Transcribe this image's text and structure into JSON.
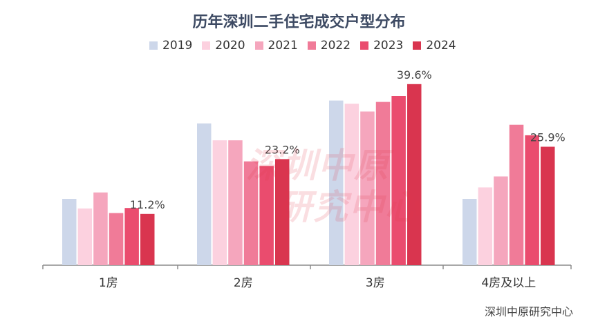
{
  "chart_data": {
    "type": "bar",
    "title": "历年深圳二手住宅成交户型分布",
    "categories": [
      "1房",
      "2房",
      "3房",
      "4房及以上"
    ],
    "series": [
      {
        "name": "2019",
        "color": "#cdd7ea",
        "values": [
          14.5,
          31.0,
          36.0,
          14.5
        ]
      },
      {
        "name": "2020",
        "color": "#fcd1df",
        "values": [
          12.4,
          27.3,
          35.3,
          17.0
        ]
      },
      {
        "name": "2021",
        "color": "#f5a6bd",
        "values": [
          15.9,
          27.3,
          33.6,
          19.4
        ]
      },
      {
        "name": "2022",
        "color": "#f07b98",
        "values": [
          11.4,
          22.7,
          35.7,
          30.7
        ]
      },
      {
        "name": "2023",
        "color": "#ea4c6e",
        "values": [
          12.5,
          21.7,
          37.0,
          28.4
        ]
      },
      {
        "name": "2024",
        "color": "#d9354f",
        "values": [
          11.2,
          23.2,
          39.6,
          25.9
        ]
      }
    ],
    "data_labels": [
      {
        "category": "1房",
        "series": "2024",
        "text": "11.2%"
      },
      {
        "category": "2房",
        "series": "2024",
        "text": "23.2%"
      },
      {
        "category": "3房",
        "series": "2024",
        "text": "39.6%"
      },
      {
        "category": "4房及以上",
        "series": "2024",
        "text": "25.9%"
      }
    ],
    "ylim": [
      0,
      45
    ],
    "grid": false,
    "legend_position": "top"
  },
  "watermark": {
    "line1": "深圳中原",
    "line2": "研究中心"
  },
  "source": "深圳中原研究中心"
}
